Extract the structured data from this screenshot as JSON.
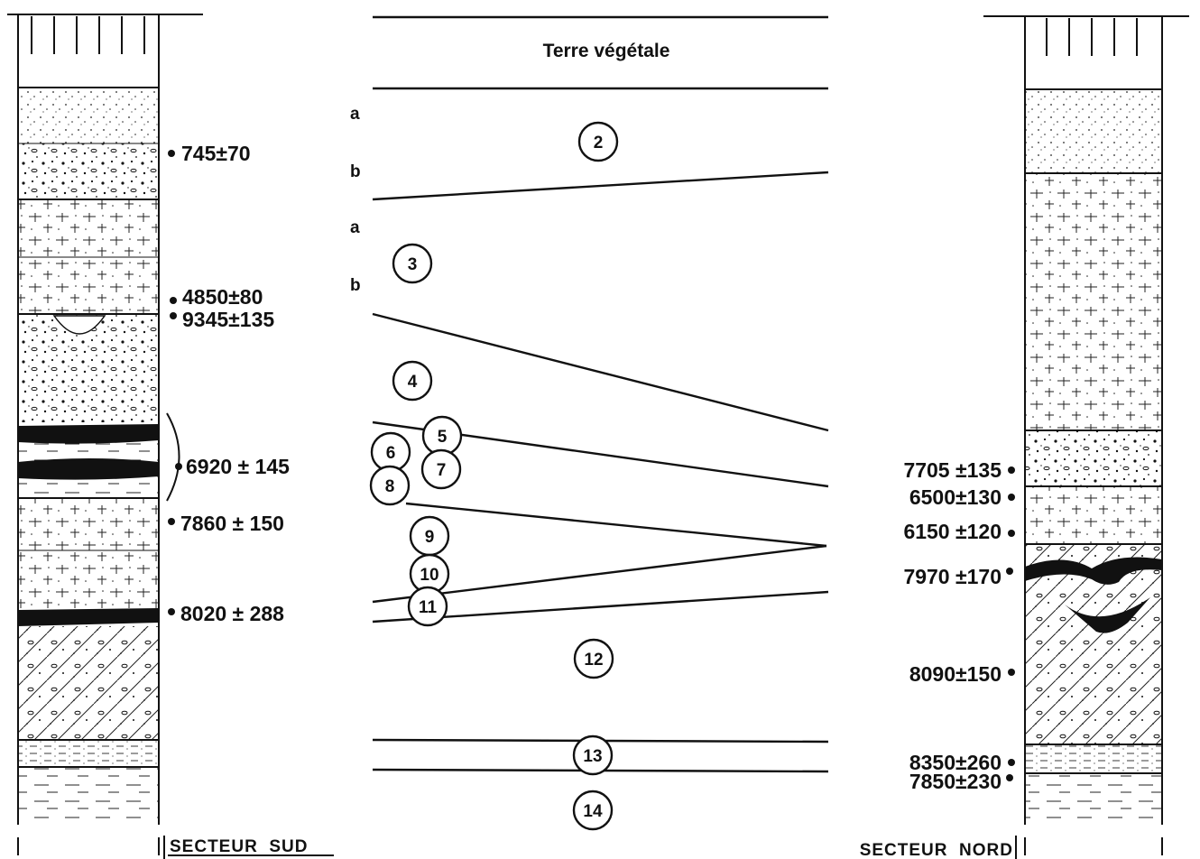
{
  "top_label": "Terre végétale",
  "sublayers": [
    "a",
    "b",
    "a",
    "b"
  ],
  "layers": [
    "2",
    "3",
    "4",
    "5",
    "6",
    "7",
    "8",
    "9",
    "10",
    "11",
    "12",
    "13",
    "14"
  ],
  "sud": {
    "label": "SECTEUR  SUD",
    "dates": [
      "745±70",
      "4850±80",
      "9345±135",
      "6920 ± 145",
      "7860 ± 150",
      "8020 ± 288"
    ]
  },
  "nord": {
    "label": "SECTEUR  NORD",
    "dates": [
      "7705 ±135",
      "6500±130",
      "6150 ±120",
      "7970 ±170",
      "8090±150",
      "8350±260",
      "7850±230"
    ]
  }
}
